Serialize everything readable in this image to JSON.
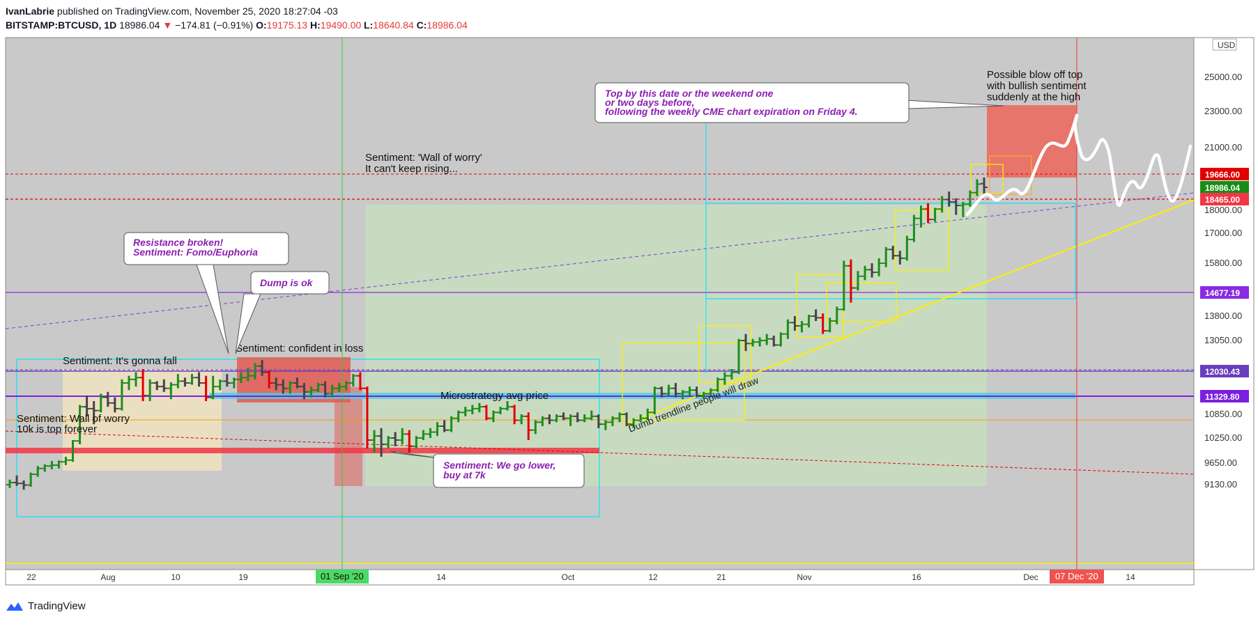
{
  "header": {
    "author": "IvanLabrie",
    "published_text": "published on TradingView.com, November 25, 2020 18:27:04 -03",
    "symbol": "BITSTAMP:BTCUSD, 1D",
    "last": "18986.04",
    "change_arrow": "▼",
    "change": "−174.81 (−0.91%)",
    "o_label": "O:",
    "o": "19175.13",
    "h_label": "H:",
    "h": "19490.00",
    "l_label": "L:",
    "l": "18640.84",
    "c_label": "C:",
    "c": "18986.04"
  },
  "footer": {
    "brand": "TradingView"
  },
  "colors": {
    "bg_chart": "#c9c9c9",
    "up": "#1e8c1e",
    "down": "#e00000",
    "neutral": "#444444",
    "accent_purple": "#8b1fb0",
    "red_badge": "#f23645",
    "green_badge": "#178d17",
    "purple_badge": "#8a2be2",
    "cyan": "#00e5ff",
    "yellow": "#ffee00"
  },
  "chart_data": {
    "type": "candlestick",
    "currency_label": "USD",
    "y_tick_labels": [
      "25000.00",
      "23000.00",
      "21000.00",
      "19666.00",
      "18986.04",
      "18465.00",
      "18000.00",
      "17000.00",
      "15800.00",
      "14677.19",
      "13800.00",
      "13050.00",
      "12030.43",
      "11329.80",
      "10850.00",
      "10250.00",
      "9650.00",
      "9130.00"
    ],
    "y_axis_ticks": [
      25000,
      23000,
      21000,
      18000,
      17000,
      15800,
      13800,
      13050,
      10850,
      10250,
      9650,
      9130
    ],
    "x_tick_labels": [
      "22",
      "Aug",
      "10",
      "19",
      "Sep",
      "14",
      "Oct",
      "12",
      "21",
      "Nov",
      "16",
      "Dec",
      "14"
    ],
    "date_markers": [
      {
        "label": "01 Sep '20",
        "color": "green"
      },
      {
        "label": "07 Dec '20",
        "color": "red"
      }
    ],
    "price_badges": [
      {
        "value": "19666.00",
        "color": "#e00000"
      },
      {
        "value": "18986.04",
        "color": "#178d17"
      },
      {
        "value": "18465.00",
        "color": "#f23645"
      },
      {
        "value": "14677.19",
        "color": "#8a2be2"
      },
      {
        "value": "12030.43",
        "color": "#6a3dbf"
      },
      {
        "value": "11329.80",
        "color": "#7b1fe0"
      }
    ],
    "annotations": {
      "callout_top": [
        "Top by this date or the weekend one",
        "or two days before,",
        "following the weekly CME chart expiration on Friday 4."
      ],
      "blow_off": [
        "Possible blow off top",
        "with bullish sentiment",
        "suddenly at the high"
      ],
      "wall_worry_2": [
        "Sentiment: 'Wall of worry'",
        "It can't keep rising..."
      ],
      "resistance": [
        "Resistance broken!",
        "Sentiment: Fomo/Euphoria"
      ],
      "dump_ok": [
        "Dump is ok"
      ],
      "confident": [
        "Sentiment: confident in loss"
      ],
      "gonna_fall": [
        "Sentiment: It's gonna fall"
      ],
      "wall_worry_1": [
        "Sentiment: Wall of worry",
        "10k is top forever"
      ],
      "microstrategy": [
        "Microstrategy avg price"
      ],
      "go_lower": [
        "Sentiment: We go lower,",
        "buy at 7k"
      ],
      "trendline": [
        "Dumb trendline people will draw"
      ]
    },
    "ohlc": [
      [
        9130,
        9250,
        9050,
        9180
      ],
      [
        9180,
        9350,
        9100,
        9160
      ],
      [
        9160,
        9230,
        9010,
        9120
      ],
      [
        9120,
        9420,
        9080,
        9380
      ],
      [
        9380,
        9580,
        9320,
        9520
      ],
      [
        9520,
        9620,
        9440,
        9580
      ],
      [
        9580,
        9700,
        9500,
        9600
      ],
      [
        9600,
        9710,
        9520,
        9680
      ],
      [
        9680,
        9800,
        9600,
        9720
      ],
      [
        9720,
        10200,
        9680,
        10180
      ],
      [
        10180,
        11100,
        10100,
        11050
      ],
      [
        11050,
        11350,
        10800,
        11000
      ],
      [
        11000,
        11200,
        10600,
        10950
      ],
      [
        10950,
        11400,
        10900,
        11300
      ],
      [
        11300,
        11450,
        11050,
        11150
      ],
      [
        11150,
        11300,
        10900,
        11000
      ],
      [
        11000,
        11800,
        10950,
        11700
      ],
      [
        11700,
        11900,
        11500,
        11800
      ],
      [
        11800,
        12000,
        11600,
        11850
      ],
      [
        11850,
        12100,
        11200,
        11350
      ],
      [
        11350,
        11800,
        11200,
        11700
      ],
      [
        11700,
        11750,
        11500,
        11600
      ],
      [
        11600,
        11800,
        11450,
        11550
      ],
      [
        11550,
        11720,
        11250,
        11650
      ],
      [
        11650,
        11950,
        11550,
        11750
      ],
      [
        11750,
        11850,
        11600,
        11700
      ],
      [
        11700,
        11950,
        11650,
        11850
      ],
      [
        11850,
        12000,
        11600,
        11700
      ],
      [
        11700,
        11900,
        11200,
        11300
      ],
      [
        11300,
        11900,
        11250,
        11600
      ],
      [
        11600,
        11800,
        11500,
        11750
      ],
      [
        11750,
        11950,
        11600,
        11700
      ],
      [
        11700,
        11850,
        11550,
        11800
      ],
      [
        11800,
        12000,
        11700,
        11850
      ],
      [
        11850,
        12150,
        11750,
        11900
      ],
      [
        11900,
        12300,
        11800,
        12200
      ],
      [
        12200,
        12400,
        11900,
        12000
      ],
      [
        12000,
        12050,
        11550,
        11700
      ],
      [
        11700,
        11850,
        11500,
        11650
      ],
      [
        11650,
        11800,
        11400,
        11550
      ],
      [
        11550,
        11750,
        11400,
        11700
      ],
      [
        11700,
        11850,
        11550,
        11600
      ],
      [
        11600,
        11700,
        11250,
        11450
      ],
      [
        11450,
        11600,
        11300,
        11500
      ],
      [
        11500,
        11700,
        11450,
        11650
      ],
      [
        11650,
        11750,
        11300,
        11400
      ],
      [
        11400,
        11650,
        11300,
        11550
      ],
      [
        11550,
        11700,
        11450,
        11600
      ],
      [
        11600,
        11750,
        11500,
        11700
      ],
      [
        11700,
        11950,
        11600,
        11900
      ],
      [
        11900,
        12000,
        11500,
        11550
      ],
      [
        11550,
        11600,
        10000,
        10200
      ],
      [
        10200,
        10450,
        9900,
        10300
      ],
      [
        10300,
        10500,
        9800,
        10100
      ],
      [
        10100,
        10300,
        10000,
        10250
      ],
      [
        10250,
        10400,
        10050,
        10200
      ],
      [
        10200,
        10500,
        10100,
        10350
      ],
      [
        10350,
        10450,
        9900,
        10050
      ],
      [
        10050,
        10300,
        10000,
        10250
      ],
      [
        10250,
        10450,
        10200,
        10350
      ],
      [
        10350,
        10500,
        10250,
        10400
      ],
      [
        10400,
        10650,
        10300,
        10550
      ],
      [
        10550,
        10700,
        10400,
        10450
      ],
      [
        10450,
        10800,
        10400,
        10750
      ],
      [
        10750,
        10950,
        10650,
        10900
      ],
      [
        10900,
        11050,
        10800,
        10950
      ],
      [
        10950,
        11100,
        10850,
        11000
      ],
      [
        11000,
        11150,
        10900,
        11050
      ],
      [
        11050,
        11100,
        10700,
        10750
      ],
      [
        10750,
        10950,
        10650,
        10900
      ],
      [
        10900,
        11050,
        10850,
        11000
      ],
      [
        11000,
        11200,
        10950,
        11050
      ],
      [
        11050,
        11100,
        10600,
        10700
      ],
      [
        10700,
        10850,
        10600,
        10800
      ],
      [
        10800,
        10900,
        10200,
        10450
      ],
      [
        10450,
        10700,
        10350,
        10650
      ],
      [
        10650,
        10800,
        10550,
        10750
      ],
      [
        10750,
        10850,
        10600,
        10700
      ],
      [
        10700,
        10850,
        10650,
        10800
      ],
      [
        10800,
        10900,
        10700,
        10750
      ],
      [
        10750,
        10850,
        10550,
        10800
      ],
      [
        10800,
        10900,
        10650,
        10700
      ],
      [
        10700,
        10850,
        10650,
        10750
      ],
      [
        10750,
        10950,
        10700,
        10800
      ],
      [
        10800,
        10850,
        10500,
        10600
      ],
      [
        10600,
        10700,
        10450,
        10650
      ],
      [
        10650,
        10800,
        10550,
        10750
      ],
      [
        10750,
        10900,
        10650,
        10850
      ],
      [
        10850,
        10900,
        10550,
        10600
      ],
      [
        10600,
        10750,
        10500,
        10700
      ],
      [
        10700,
        10850,
        10650,
        10750
      ],
      [
        10750,
        11000,
        10700,
        10900
      ],
      [
        10900,
        11600,
        10850,
        11550
      ],
      [
        11550,
        11600,
        11300,
        11400
      ],
      [
        11400,
        11650,
        11350,
        11550
      ],
      [
        11550,
        11700,
        11300,
        11400
      ],
      [
        11400,
        11500,
        11250,
        11450
      ],
      [
        11450,
        11600,
        11350,
        11500
      ],
      [
        11500,
        11600,
        11300,
        11350
      ],
      [
        11350,
        11450,
        11250,
        11400
      ],
      [
        11400,
        11550,
        11350,
        11500
      ],
      [
        11500,
        11850,
        11450,
        11800
      ],
      [
        11800,
        12000,
        11650,
        11900
      ],
      [
        11900,
        12100,
        11800,
        12000
      ],
      [
        12000,
        13100,
        11950,
        13050
      ],
      [
        13050,
        13250,
        12700,
        12950
      ],
      [
        12950,
        13100,
        12850,
        13000
      ],
      [
        13000,
        13150,
        12850,
        13050
      ],
      [
        13050,
        13250,
        12900,
        13100
      ],
      [
        13100,
        13200,
        12850,
        12900
      ],
      [
        12900,
        13300,
        12850,
        13250
      ],
      [
        13250,
        13700,
        13100,
        13600
      ],
      [
        13600,
        13800,
        13350,
        13500
      ],
      [
        13500,
        13650,
        13300,
        13550
      ],
      [
        13550,
        13850,
        13450,
        13800
      ],
      [
        13800,
        14050,
        13650,
        13750
      ],
      [
        13750,
        13900,
        13250,
        13350
      ],
      [
        13350,
        13750,
        13300,
        13650
      ],
      [
        13650,
        14150,
        13550,
        14050
      ],
      [
        14050,
        15900,
        14000,
        15700
      ],
      [
        15700,
        15950,
        14300,
        14850
      ],
      [
        14850,
        15500,
        14750,
        15300
      ],
      [
        15300,
        15700,
        15150,
        15550
      ],
      [
        15550,
        15800,
        15250,
        15450
      ],
      [
        15450,
        16000,
        15300,
        15800
      ],
      [
        15800,
        16450,
        15650,
        16350
      ],
      [
        16350,
        16500,
        15950,
        16100
      ],
      [
        16100,
        16300,
        15750,
        16000
      ],
      [
        16000,
        16900,
        15900,
        16750
      ],
      [
        16750,
        17800,
        16650,
        17650
      ],
      [
        17650,
        18200,
        17250,
        18050
      ],
      [
        18050,
        18300,
        17450,
        17600
      ],
      [
        17600,
        18100,
        17500,
        18050
      ],
      [
        18050,
        18600,
        17900,
        18450
      ],
      [
        18450,
        18800,
        18150,
        18350
      ],
      [
        18350,
        18500,
        17800,
        18200
      ],
      [
        18200,
        18350,
        17700,
        18250
      ],
      [
        18250,
        18850,
        18150,
        18750
      ],
      [
        18750,
        19400,
        18600,
        19150
      ],
      [
        19175,
        19490,
        18640,
        18986
      ]
    ]
  }
}
